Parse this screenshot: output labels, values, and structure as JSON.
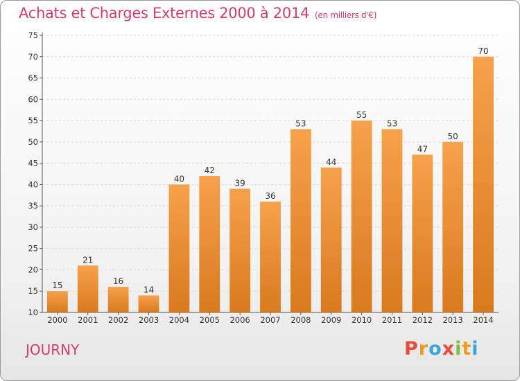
{
  "header": {
    "title": "Achats et Charges Externes 2000 à 2014",
    "unit": "(en milliers d'€)"
  },
  "footer": {
    "commune": "JOURNY",
    "logo": [
      "P",
      "r",
      "o",
      "x",
      "i",
      "t",
      "i"
    ]
  },
  "colors": {
    "title": "#d23c6e",
    "bar_top": "#f6a14c",
    "bar_bottom": "#d97a1d",
    "logo": [
      "#e84a3c",
      "#f29a1f",
      "#3aa3dc",
      "#e84a3c",
      "#7fbf3f",
      "#f29a1f",
      "#3aa3dc"
    ]
  },
  "chart_data": {
    "type": "bar",
    "title": "Achats et Charges Externes 2000 à 2014",
    "subtitle": "(en milliers d'€)",
    "categories": [
      "2000",
      "2001",
      "2002",
      "2003",
      "2004",
      "2005",
      "2006",
      "2007",
      "2008",
      "2009",
      "2010",
      "2011",
      "2012",
      "2013",
      "2014"
    ],
    "values": [
      15,
      21,
      16,
      14,
      40,
      42,
      39,
      36,
      53,
      44,
      55,
      53,
      47,
      50,
      70
    ],
    "ylim": [
      10,
      75
    ],
    "yticks": [
      10,
      15,
      20,
      25,
      30,
      35,
      40,
      45,
      50,
      55,
      60,
      65,
      70,
      75
    ],
    "grid": true,
    "data_labels": true
  }
}
